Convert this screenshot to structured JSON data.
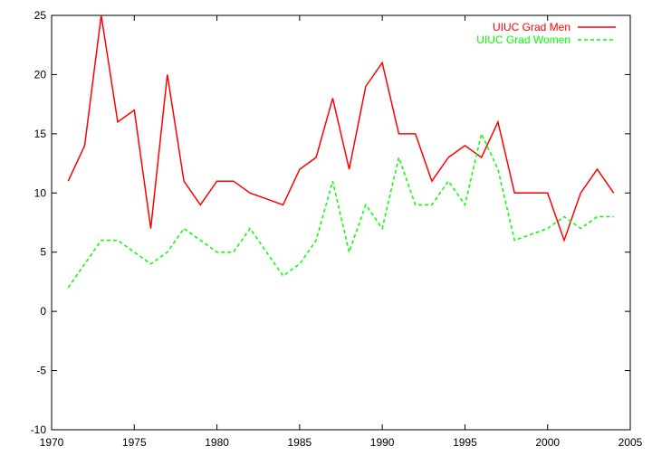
{
  "chart_data": {
    "type": "line",
    "title": "",
    "xlabel": "",
    "ylabel": "",
    "xlim": [
      1970,
      2005
    ],
    "ylim": [
      -10,
      25
    ],
    "xticks": [
      1970,
      1975,
      1980,
      1985,
      1990,
      1995,
      2000,
      2005
    ],
    "yticks": [
      -10,
      -5,
      0,
      5,
      10,
      15,
      20,
      25
    ],
    "grid": false,
    "legend": "top-right",
    "series": [
      {
        "name": "UIUC Grad Men",
        "color": "#ff0000",
        "dash": "solid",
        "x": [
          1971,
          1972,
          1973,
          1974,
          1975,
          1976,
          1977,
          1978,
          1979,
          1980,
          1981,
          1982,
          1983,
          1984,
          1985,
          1986,
          1987,
          1988,
          1989,
          1990,
          1991,
          1992,
          1993,
          1994,
          1995,
          1996,
          1997,
          1998,
          1999,
          2000,
          2001,
          2002,
          2003,
          2004
        ],
        "y": [
          11,
          14,
          25,
          16,
          17,
          7,
          20,
          11,
          9,
          11,
          11,
          10,
          9.5,
          9,
          12,
          13,
          18,
          12,
          19,
          21,
          15,
          15,
          11,
          13,
          14,
          13,
          16,
          10,
          10,
          10,
          6,
          10,
          12,
          10
        ]
      },
      {
        "name": "UIUC Grad Women",
        "color": "#00ff00",
        "dash": "dashed",
        "x": [
          1971,
          1972,
          1973,
          1974,
          1975,
          1976,
          1977,
          1978,
          1979,
          1980,
          1981,
          1982,
          1983,
          1984,
          1985,
          1986,
          1987,
          1988,
          1989,
          1990,
          1991,
          1992,
          1993,
          1994,
          1995,
          1996,
          1997,
          1998,
          1999,
          2000,
          2001,
          2002,
          2003,
          2004
        ],
        "y": [
          2,
          4,
          6,
          6,
          5,
          4,
          5,
          7,
          6,
          5,
          5,
          7,
          5,
          3,
          4,
          6,
          11,
          5,
          9,
          7,
          13,
          9,
          9,
          11,
          9,
          15,
          12,
          6,
          6.5,
          7,
          8,
          7,
          8,
          8
        ]
      }
    ]
  }
}
